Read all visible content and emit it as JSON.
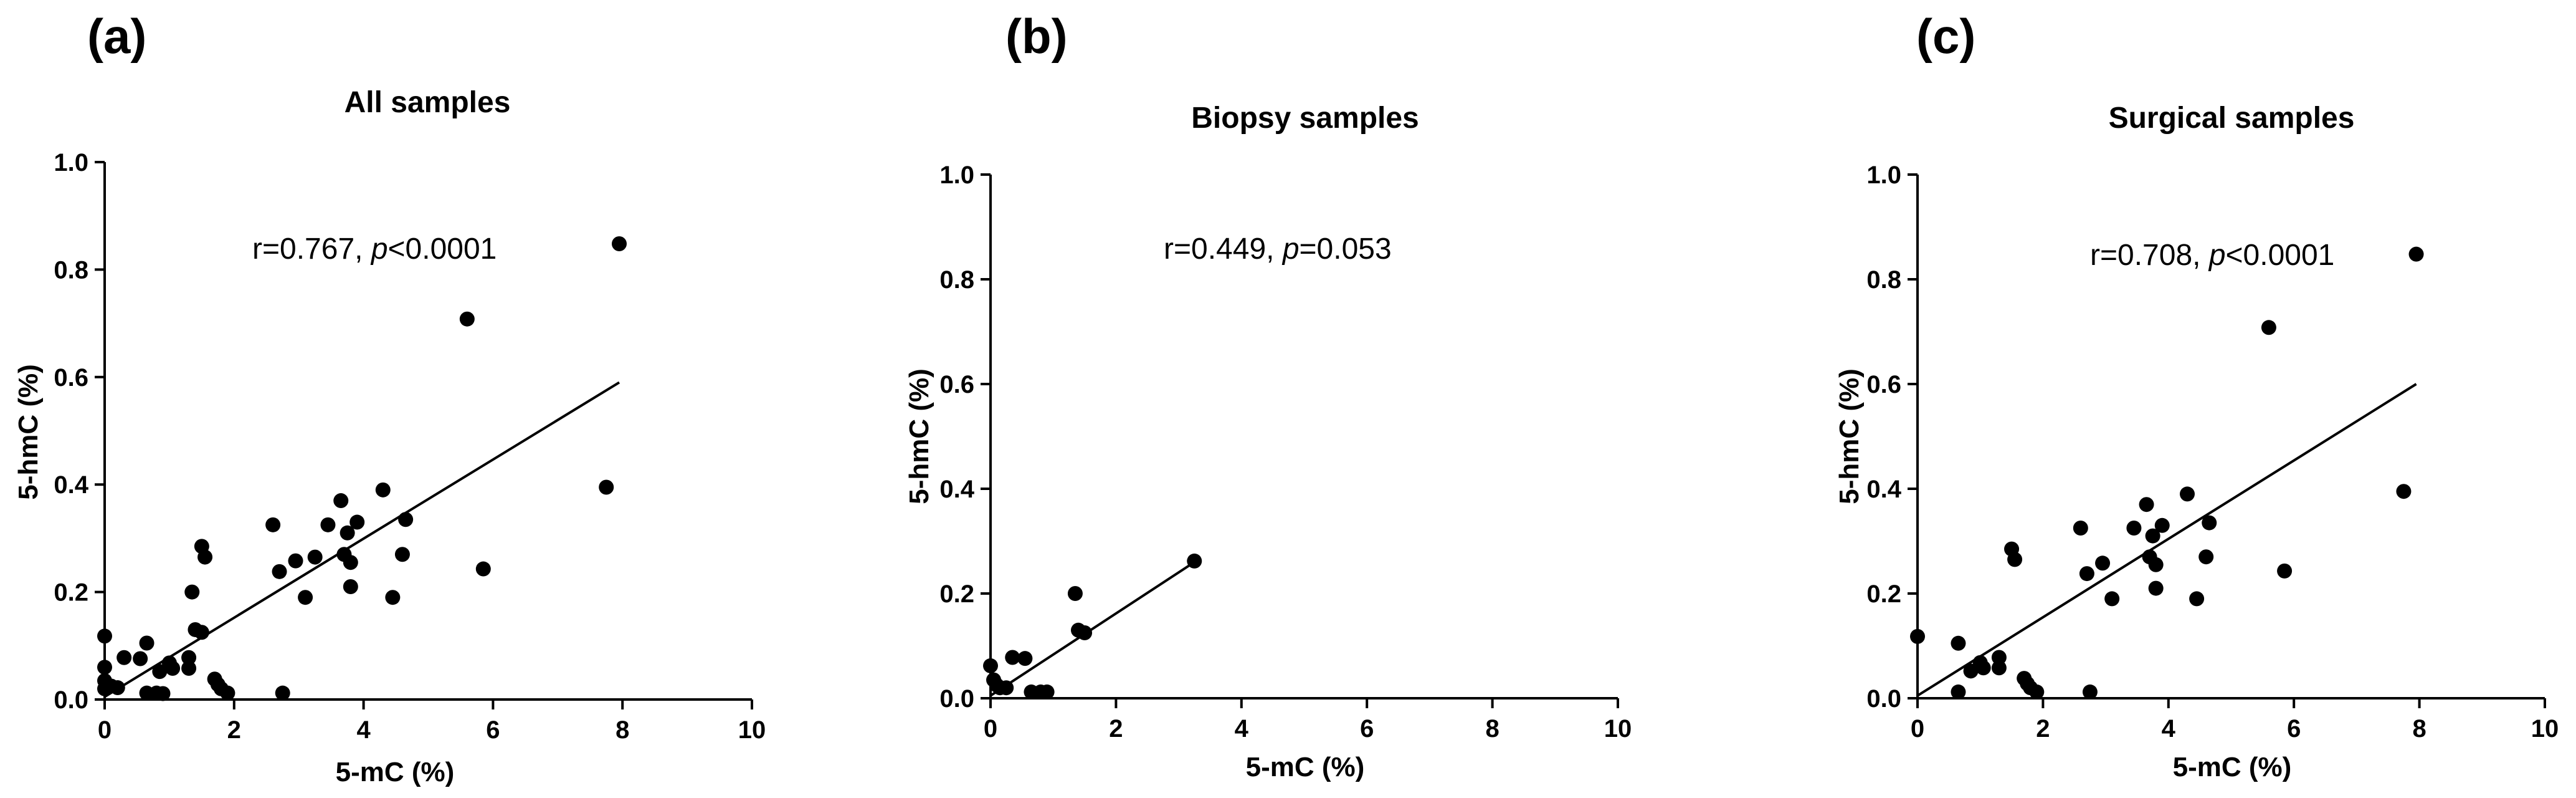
{
  "figure": {
    "panels": [
      {
        "letter": "(a)",
        "r_text": "r=0.767, ",
        "p_letter": "p",
        "p_text": "<0.0001"
      },
      {
        "letter": "(b)",
        "r_text": "r=0.449, ",
        "p_letter": "p",
        "p_text": "=0.053"
      },
      {
        "letter": "(c)",
        "r_text": "r=0.708, ",
        "p_letter": "p",
        "p_text": "<0.0001"
      }
    ]
  },
  "chart_data": [
    {
      "type": "scatter",
      "title": "All samples",
      "xlabel": "5-mC (%)",
      "ylabel": "5-hmC (%)",
      "xlim": [
        0,
        10
      ],
      "ylim": [
        0,
        1.0
      ],
      "xticks": [
        0,
        2,
        4,
        6,
        8,
        10
      ],
      "yticks": [
        0.0,
        0.2,
        0.4,
        0.6,
        0.8,
        1.0
      ],
      "xtick_labels": [
        "0",
        "2",
        "4",
        "6",
        "8",
        "10"
      ],
      "ytick_labels": [
        "0.0",
        "0.2",
        "0.4",
        "0.6",
        "0.8",
        "1.0"
      ],
      "grid": false,
      "annotation": "r=0.767, p<0.0001",
      "regression_line": {
        "x": [
          0.0,
          7.95
        ],
        "y": [
          0.005,
          0.59
        ]
      },
      "points": [
        [
          0.0,
          0.118
        ],
        [
          0.0,
          0.06
        ],
        [
          0.0,
          0.035
        ],
        [
          0.0,
          0.02
        ],
        [
          0.1,
          0.025
        ],
        [
          0.2,
          0.022
        ],
        [
          0.3,
          0.078
        ],
        [
          0.55,
          0.076
        ],
        [
          0.65,
          0.105
        ],
        [
          0.65,
          0.012
        ],
        [
          0.8,
          0.012
        ],
        [
          0.85,
          0.052
        ],
        [
          0.9,
          0.011
        ],
        [
          1.0,
          0.068
        ],
        [
          1.05,
          0.058
        ],
        [
          1.3,
          0.058
        ],
        [
          1.3,
          0.078
        ],
        [
          1.35,
          0.2
        ],
        [
          1.4,
          0.13
        ],
        [
          1.5,
          0.125
        ],
        [
          1.5,
          0.285
        ],
        [
          1.55,
          0.265
        ],
        [
          1.7,
          0.038
        ],
        [
          1.75,
          0.028
        ],
        [
          1.8,
          0.02
        ],
        [
          1.9,
          0.012
        ],
        [
          2.6,
          0.325
        ],
        [
          2.7,
          0.238
        ],
        [
          2.75,
          0.012
        ],
        [
          2.95,
          0.258
        ],
        [
          3.1,
          0.19
        ],
        [
          3.25,
          0.265
        ],
        [
          3.45,
          0.325
        ],
        [
          3.65,
          0.37
        ],
        [
          3.7,
          0.27
        ],
        [
          3.75,
          0.31
        ],
        [
          3.8,
          0.255
        ],
        [
          3.8,
          0.21
        ],
        [
          3.9,
          0.33
        ],
        [
          4.3,
          0.39
        ],
        [
          4.45,
          0.19
        ],
        [
          4.6,
          0.27
        ],
        [
          4.65,
          0.335
        ],
        [
          5.6,
          0.708
        ],
        [
          5.85,
          0.243
        ],
        [
          7.75,
          0.395
        ],
        [
          7.95,
          0.848
        ]
      ]
    },
    {
      "type": "scatter",
      "title": "Biopsy samples",
      "xlabel": "5-mC (%)",
      "ylabel": "5-hmC (%)",
      "xlim": [
        0,
        10
      ],
      "ylim": [
        0,
        1.0
      ],
      "xticks": [
        0,
        2,
        4,
        6,
        8,
        10
      ],
      "yticks": [
        0.0,
        0.2,
        0.4,
        0.6,
        0.8,
        1.0
      ],
      "xtick_labels": [
        "0",
        "2",
        "4",
        "6",
        "8",
        "10"
      ],
      "ytick_labels": [
        "0.0",
        "0.2",
        "0.4",
        "0.6",
        "0.8",
        "1.0"
      ],
      "grid": false,
      "annotation": "r=0.449, p=0.053",
      "regression_line": {
        "x": [
          0.0,
          3.25
        ],
        "y": [
          0.005,
          0.26
        ]
      },
      "points": [
        [
          0.0,
          0.062
        ],
        [
          0.05,
          0.035
        ],
        [
          0.1,
          0.025
        ],
        [
          0.15,
          0.02
        ],
        [
          0.25,
          0.02
        ],
        [
          0.35,
          0.078
        ],
        [
          0.55,
          0.076
        ],
        [
          0.65,
          0.012
        ],
        [
          0.8,
          0.012
        ],
        [
          0.9,
          0.012
        ],
        [
          1.35,
          0.2
        ],
        [
          1.4,
          0.13
        ],
        [
          1.5,
          0.125
        ],
        [
          3.25,
          0.262
        ]
      ]
    },
    {
      "type": "scatter",
      "title": "Surgical samples",
      "xlabel": "5-mC (%)",
      "ylabel": "5-hmC (%)",
      "xlim": [
        0,
        10
      ],
      "ylim": [
        0,
        1.0
      ],
      "xticks": [
        0,
        2,
        4,
        6,
        8,
        10
      ],
      "yticks": [
        0.0,
        0.2,
        0.4,
        0.6,
        0.8,
        1.0
      ],
      "xtick_labels": [
        "0",
        "2",
        "4",
        "6",
        "8",
        "10"
      ],
      "ytick_labels": [
        "0.0",
        "0.2",
        "0.4",
        "0.6",
        "0.8",
        "1.0"
      ],
      "grid": false,
      "annotation": "r=0.708, p<0.0001",
      "regression_line": {
        "x": [
          0.0,
          7.95
        ],
        "y": [
          0.005,
          0.6
        ]
      },
      "points": [
        [
          0.0,
          0.118
        ],
        [
          0.65,
          0.105
        ],
        [
          0.65,
          0.012
        ],
        [
          0.85,
          0.052
        ],
        [
          1.0,
          0.068
        ],
        [
          1.05,
          0.058
        ],
        [
          1.3,
          0.058
        ],
        [
          1.3,
          0.078
        ],
        [
          1.5,
          0.285
        ],
        [
          1.55,
          0.265
        ],
        [
          1.7,
          0.038
        ],
        [
          1.75,
          0.028
        ],
        [
          1.8,
          0.02
        ],
        [
          1.9,
          0.012
        ],
        [
          2.6,
          0.325
        ],
        [
          2.7,
          0.238
        ],
        [
          2.75,
          0.012
        ],
        [
          2.95,
          0.258
        ],
        [
          3.1,
          0.19
        ],
        [
          3.45,
          0.325
        ],
        [
          3.65,
          0.37
        ],
        [
          3.7,
          0.27
        ],
        [
          3.75,
          0.31
        ],
        [
          3.8,
          0.255
        ],
        [
          3.8,
          0.21
        ],
        [
          3.9,
          0.33
        ],
        [
          4.3,
          0.39
        ],
        [
          4.45,
          0.19
        ],
        [
          4.6,
          0.27
        ],
        [
          4.65,
          0.335
        ],
        [
          5.6,
          0.708
        ],
        [
          5.85,
          0.243
        ],
        [
          7.75,
          0.395
        ],
        [
          7.95,
          0.848
        ]
      ]
    }
  ]
}
